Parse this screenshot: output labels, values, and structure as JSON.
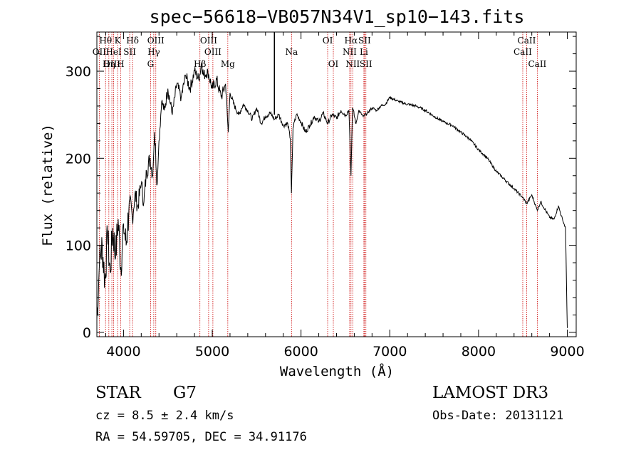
{
  "chart_data": {
    "type": "line",
    "title": "spec−56618−VB057N34V1_sp10−143.fits",
    "xlabel": "Wavelength (Å)",
    "ylabel": "Flux (relative)",
    "xlim": [
      3700,
      9100
    ],
    "ylim": [
      -5,
      345
    ],
    "xticks": [
      4000,
      5000,
      6000,
      7000,
      8000,
      9000
    ],
    "yticks": [
      0,
      100,
      200,
      300
    ],
    "x_minor_step": 200,
    "y_minor_step": 20,
    "marker_line": 5700,
    "series": [
      {
        "name": "flux",
        "x": [
          3700,
          3730,
          3760,
          3790,
          3820,
          3850,
          3880,
          3910,
          3940,
          3970,
          4000,
          4030,
          4060,
          4100,
          4130,
          4160,
          4200,
          4230,
          4260,
          4300,
          4330,
          4350,
          4380,
          4400,
          4430,
          4460,
          4500,
          4550,
          4600,
          4650,
          4700,
          4750,
          4800,
          4850,
          4880,
          4900,
          4950,
          5000,
          5050,
          5100,
          5150,
          5180,
          5200,
          5250,
          5300,
          5350,
          5400,
          5450,
          5500,
          5550,
          5600,
          5650,
          5700,
          5750,
          5800,
          5850,
          5880,
          5892,
          5910,
          5950,
          6000,
          6050,
          6100,
          6150,
          6200,
          6250,
          6300,
          6350,
          6400,
          6450,
          6500,
          6540,
          6563,
          6580,
          6620,
          6650,
          6700,
          6750,
          6800,
          6850,
          6900,
          6950,
          7000,
          7100,
          7200,
          7300,
          7400,
          7500,
          7600,
          7700,
          7800,
          7900,
          8000,
          8100,
          8200,
          8300,
          8400,
          8498,
          8542,
          8600,
          8662,
          8700,
          8800,
          8850,
          8900,
          8950,
          8980,
          8995,
          9000
        ],
        "y": [
          15,
          80,
          100,
          60,
          110,
          70,
          120,
          85,
          130,
          75,
          125,
          100,
          140,
          130,
          160,
          145,
          170,
          150,
          185,
          200,
          180,
          230,
          170,
          220,
          265,
          255,
          280,
          250,
          285,
          270,
          295,
          280,
          300,
          290,
          310,
          295,
          300,
          280,
          290,
          270,
          285,
          230,
          275,
          260,
          250,
          262,
          255,
          245,
          258,
          240,
          248,
          252,
          245,
          250,
          238,
          240,
          222,
          160,
          235,
          250,
          242,
          230,
          238,
          248,
          242,
          252,
          240,
          250,
          246,
          255,
          250,
          255,
          180,
          258,
          240,
          255,
          248,
          252,
          258,
          255,
          260,
          262,
          270,
          265,
          262,
          260,
          255,
          248,
          242,
          238,
          230,
          222,
          210,
          200,
          185,
          175,
          165,
          155,
          148,
          158,
          140,
          150,
          132,
          130,
          145,
          128,
          120,
          30,
          5
        ]
      }
    ],
    "spectral_lines": [
      {
        "label": "Hθ",
        "x": 3798,
        "row": 0
      },
      {
        "label": "OII",
        "x": 3727,
        "row": 1
      },
      {
        "label": "OIII",
        "x": 3869,
        "row": 2
      },
      {
        "label": "Hη",
        "x": 3835,
        "row": 2
      },
      {
        "label": "HeI",
        "x": 3889,
        "row": 1
      },
      {
        "label": "K",
        "x": 3934,
        "row": 0
      },
      {
        "label": "SII",
        "x": 4070,
        "row": 1
      },
      {
        "label": "H",
        "x": 3968,
        "row": 2
      },
      {
        "label": "Hδ",
        "x": 4102,
        "row": 0
      },
      {
        "label": "OIII",
        "x": 4364,
        "row": 0
      },
      {
        "label": "Hγ",
        "x": 4341,
        "row": 1
      },
      {
        "label": "G",
        "x": 4305,
        "row": 2
      },
      {
        "label": "OIII",
        "x": 4959,
        "row": 0
      },
      {
        "label": "OIII",
        "x": 5007,
        "row": 1
      },
      {
        "label": "Hβ",
        "x": 4861,
        "row": 2
      },
      {
        "label": "Mg",
        "x": 5175,
        "row": 2
      },
      {
        "label": "Na",
        "x": 5893,
        "row": 1
      },
      {
        "label": "OI",
        "x": 6300,
        "row": 0
      },
      {
        "label": "OI",
        "x": 6364,
        "row": 2
      },
      {
        "label": "Hα",
        "x": 6563,
        "row": 0
      },
      {
        "label": "NII",
        "x": 6548,
        "row": 1
      },
      {
        "label": "NII",
        "x": 6583,
        "row": 2
      },
      {
        "label": "SII",
        "x": 6716,
        "row": 0
      },
      {
        "label": "Li",
        "x": 6708,
        "row": 1
      },
      {
        "label": "SII",
        "x": 6731,
        "row": 2
      },
      {
        "label": "CaII",
        "x": 8542,
        "row": 0
      },
      {
        "label": "CaII",
        "x": 8498,
        "row": 1
      },
      {
        "label": "CaII",
        "x": 8662,
        "row": 2
      }
    ],
    "line_color": "#000000",
    "marker_color": "#cc0000"
  },
  "info": {
    "object_class": "STAR",
    "subclass": "G7",
    "redshift": "cz = 8.5 ± 2.4 km/s",
    "coords": "RA =  54.59705, DEC =  34.91176",
    "survey": "LAMOST DR3",
    "obs_date": "Obs-Date: 20131121"
  }
}
